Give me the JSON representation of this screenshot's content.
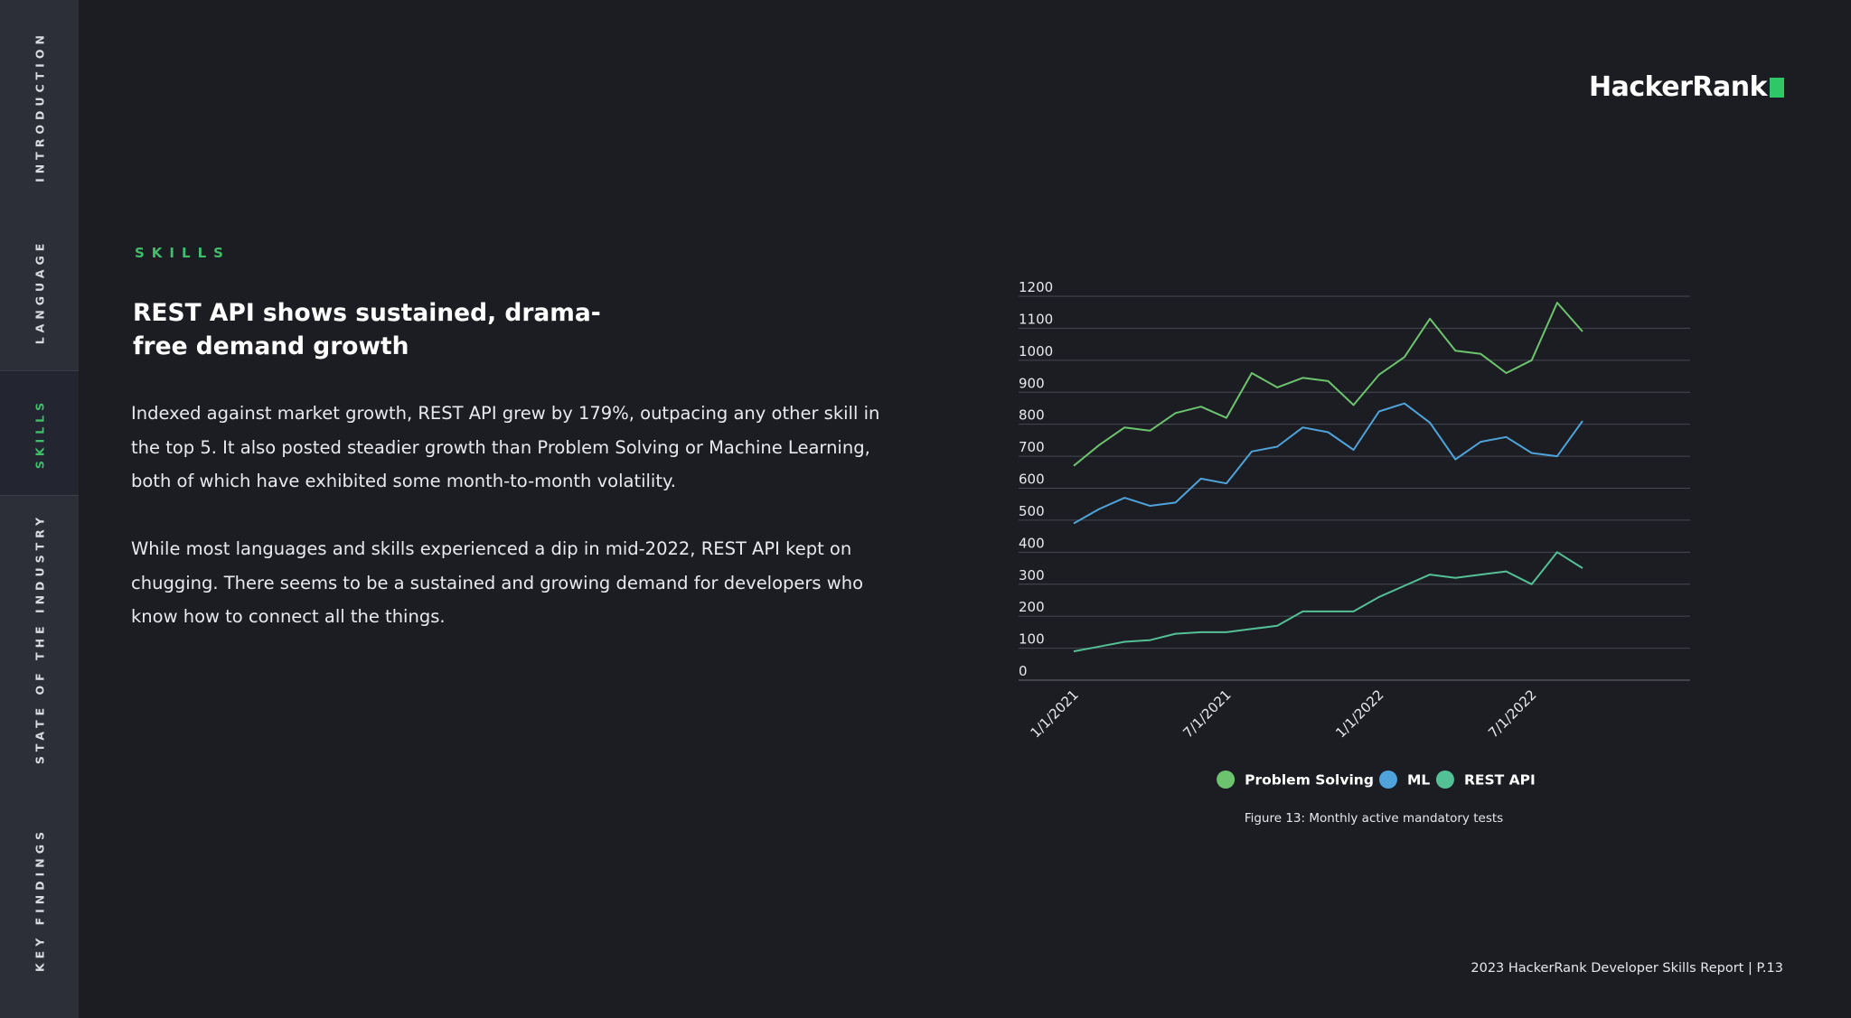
{
  "sidebar": {
    "items": [
      {
        "label": "INTRODUCTION",
        "active": false
      },
      {
        "label": "LANGUAGE",
        "active": false
      },
      {
        "label": "SKILLS",
        "active": true
      },
      {
        "label": "STATE OF THE INDUSTRY",
        "active": false
      },
      {
        "label": "KEY FINDINGS",
        "active": false
      }
    ]
  },
  "logo": {
    "text": "HackerRank"
  },
  "section": {
    "eyebrow": "SKILLS"
  },
  "headline": "REST API shows sustained, drama-free demand growth",
  "paragraphs": [
    "Indexed against market growth, REST API grew by 179%, outpacing any other skill in the top 5. It also posted steadier growth than Problem Solving or Machine Learning, both of which have exhibited some month-to-month volatility.",
    "While most languages and skills experienced a dip in mid-2022, REST API kept on chugging. There seems to be a sustained and growing demand for developers who know how to connect all the things."
  ],
  "chart_data": {
    "type": "line",
    "title": "",
    "xlabel": "",
    "ylabel": "",
    "ylim": [
      0,
      1200
    ],
    "yticks": [
      "0",
      "100",
      "200",
      "300",
      "400",
      "500",
      "600",
      "700",
      "800",
      "900",
      "1000",
      "1100",
      "1200"
    ],
    "x": [
      "1/1/2021",
      "2/1/2021",
      "3/1/2021",
      "4/1/2021",
      "5/1/2021",
      "6/1/2021",
      "7/1/2021",
      "8/1/2021",
      "9/1/2021",
      "10/1/2021",
      "11/1/2021",
      "12/1/2021",
      "1/1/2022",
      "2/1/2022",
      "3/1/2022",
      "4/1/2022",
      "5/1/2022",
      "6/1/2022",
      "7/1/2022",
      "8/1/2022",
      "9/1/2022"
    ],
    "xtick_labels": [
      "1/1/2021",
      "7/1/2021",
      "1/1/2022",
      "7/1/2022"
    ],
    "grid": true,
    "legend_position": "bottom",
    "series": [
      {
        "name": "Problem Solving",
        "color": "#6cc46f",
        "values": [
          670,
          735,
          790,
          780,
          835,
          855,
          820,
          960,
          915,
          945,
          935,
          860,
          955,
          1010,
          1130,
          1030,
          1020,
          960,
          1000,
          1180,
          1090
        ]
      },
      {
        "name": "ML",
        "color": "#4ea3da",
        "values": [
          490,
          535,
          570,
          545,
          555,
          630,
          615,
          715,
          730,
          790,
          775,
          720,
          840,
          865,
          805,
          690,
          745,
          760,
          710,
          700,
          810
        ]
      },
      {
        "name": "REST API",
        "color": "#54c096",
        "values": [
          90,
          105,
          120,
          125,
          145,
          150,
          150,
          160,
          170,
          215,
          215,
          215,
          260,
          295,
          330,
          320,
          330,
          340,
          300,
          400,
          350
        ]
      }
    ]
  },
  "caption": "Figure 13: Monthly active mandatory tests",
  "footer": "2023 HackerRank Developer Skills Report | P.13"
}
